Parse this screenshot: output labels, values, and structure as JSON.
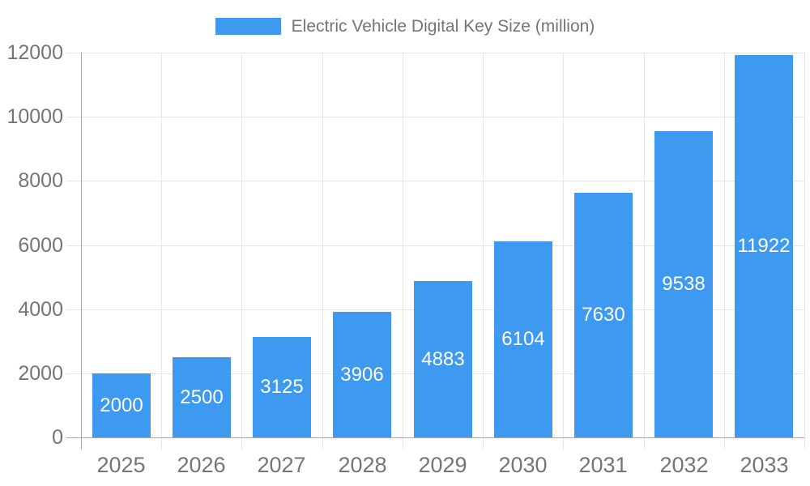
{
  "chart_data": {
    "type": "bar",
    "title": "Electric Vehicle Digital Key Size (million)",
    "legend": {
      "position": "top-center",
      "entries": [
        "Electric Vehicle Digital Key Size (million)"
      ]
    },
    "categories": [
      "2025",
      "2026",
      "2027",
      "2028",
      "2029",
      "2030",
      "2031",
      "2032",
      "2033"
    ],
    "series": [
      {
        "name": "Electric Vehicle Digital Key Size (million)",
        "values": [
          2000,
          2500,
          3125,
          3906,
          4883,
          6104,
          7630,
          9538,
          11922
        ]
      }
    ],
    "value_labels": {
      "position": "inside-center",
      "visible": true
    },
    "xlabel": "",
    "ylabel": "",
    "ylim": [
      0,
      12000
    ],
    "yticks": [
      0,
      2000,
      4000,
      6000,
      8000,
      10000,
      12000
    ],
    "grid": true,
    "colors": {
      "bar": "#3d9af0",
      "grid_line": "#e6e6e6",
      "axis_line": "#a8a8a8",
      "tick_label": "#757575",
      "legend_text": "#757575",
      "value_label": "#ffffff",
      "background": "#ffffff"
    }
  }
}
